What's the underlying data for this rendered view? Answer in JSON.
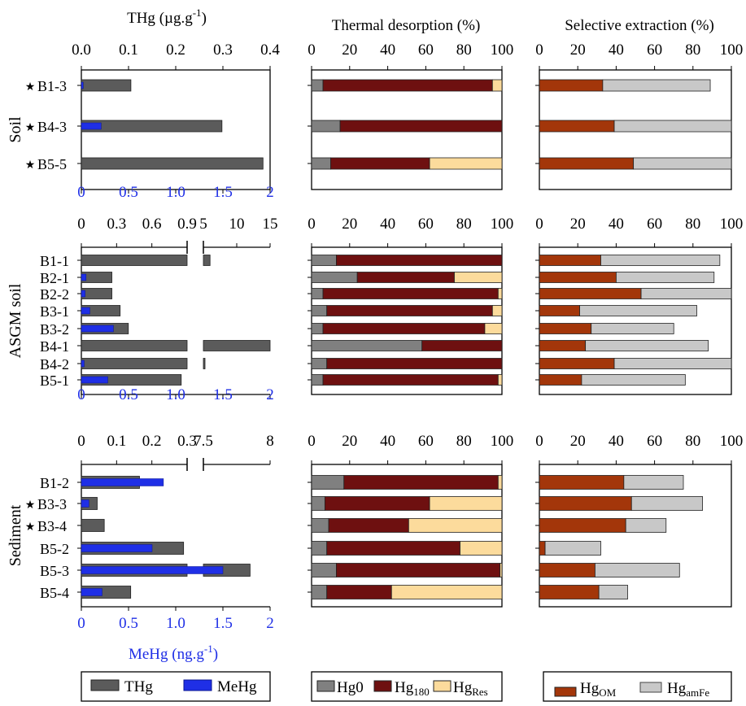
{
  "colors": {
    "thg": "#5b5b5b",
    "mehg": "#1f2fe6",
    "hg0": "#808080",
    "hg180": "#6e1010",
    "hgres": "#fcdb9c",
    "hgom": "#a3360a",
    "hgamfe": "#c8c8c8",
    "bottom_axis": "#1f2fe6"
  },
  "headers": {
    "thg": "THg",
    "thg_unit": "(µg.g",
    "thg_unit_sup": "-1",
    "thg_unit_close": ")",
    "thermal": "Thermal desorption (%)",
    "selective": "Selective extraction (%)"
  },
  "mehg_axis_label": {
    "text": "MeHg",
    "unit": "(ng.g",
    "sup": "-1",
    "close": ")"
  },
  "star_glyph": "★",
  "groups": [
    {
      "label": "Soil",
      "top_ticks": [
        "0.0",
        "0.1",
        "0.2",
        "0.3",
        "0.4"
      ],
      "bottom_ticks": [
        "0",
        "0.5",
        "1.0",
        "1.5",
        "2"
      ]
    },
    {
      "label": "ASGM soil",
      "top_ticks_left": [
        "0",
        "0.3",
        "0.6",
        "0.9"
      ],
      "top_ticks_right": [
        "5",
        "10",
        "15"
      ],
      "bottom_ticks": [
        "0",
        "0.5",
        "1.0",
        "1.5",
        "2"
      ]
    },
    {
      "label": "Sediment",
      "top_ticks_left": [
        "0",
        "0.1",
        "0.2",
        "0.3"
      ],
      "top_ticks_right": [
        "7.5",
        "8"
      ],
      "bottom_ticks": [
        "0",
        "0.5",
        "1.0",
        "1.5",
        "2"
      ]
    }
  ],
  "percent_ticks": [
    "0",
    "20",
    "40",
    "60",
    "80",
    "100"
  ],
  "legends": {
    "thg": "THg",
    "mehg": "MeHg",
    "hg0": "Hg0",
    "hg180": "Hg",
    "hg180_sub": "180",
    "hgres": "Hg",
    "hgres_sub": "Res",
    "hgom": "Hg",
    "hgom_sub": "OM",
    "hgamfe": "Hg",
    "hgamfe_sub": "amFe"
  },
  "chart_data": [
    {
      "type": "bar",
      "title": "THg (µg.g-1)",
      "xlabel": "MeHg (ng.g-1)",
      "groups": [
        {
          "name": "Soil",
          "samples": [
            {
              "label": "B1-3",
              "star": true,
              "thg": 0.105,
              "mehg": 0.02
            },
            {
              "label": "B4-3",
              "star": true,
              "thg": 0.298,
              "mehg": 0.21
            },
            {
              "label": "B5-5",
              "star": true,
              "thg": 0.385,
              "mehg": null
            }
          ]
        },
        {
          "name": "ASGM soil",
          "samples": [
            {
              "label": "B1-1",
              "thg": 6.0,
              "mehg": null
            },
            {
              "label": "B2-1",
              "thg": 0.26,
              "mehg": 0.05
            },
            {
              "label": "B2-2",
              "thg": 0.26,
              "mehg": 0.04
            },
            {
              "label": "B3-1",
              "thg": 0.33,
              "mehg": 0.09
            },
            {
              "label": "B3-2",
              "thg": 0.4,
              "mehg": 0.34
            },
            {
              "label": "B4-1",
              "thg": 15.0,
              "mehg": null
            },
            {
              "label": "B4-2",
              "thg": 0.97,
              "mehg": 0.03
            },
            {
              "label": "B5-1",
              "thg": 0.85,
              "mehg": 0.28
            }
          ]
        },
        {
          "name": "Sediment",
          "samples": [
            {
              "label": "B1-2",
              "thg": 0.165,
              "mehg": 0.87
            },
            {
              "label": "B3-3",
              "star": true,
              "thg": 0.045,
              "mehg": 0.08
            },
            {
              "label": "B3-4",
              "star": true,
              "thg": 0.065,
              "mehg": null
            },
            {
              "label": "B5-2",
              "thg": 0.29,
              "mehg": 0.75
            },
            {
              "label": "B5-3",
              "thg": 7.85,
              "mehg": 1.5
            },
            {
              "label": "B5-4",
              "thg": 0.14,
              "mehg": 0.22
            }
          ]
        }
      ],
      "legend": [
        "THg",
        "MeHg"
      ]
    },
    {
      "type": "bar",
      "stacked": true,
      "title": "Thermal desorption (%)",
      "series_names": [
        "Hg0",
        "Hg180",
        "HgRes"
      ],
      "xlim": [
        0,
        100
      ],
      "groups": [
        {
          "name": "Soil",
          "rows": [
            [
              6,
              89,
              5
            ],
            [
              15,
              85,
              0
            ],
            [
              10,
              52,
              38
            ]
          ]
        },
        {
          "name": "ASGM soil",
          "rows": [
            [
              13,
              87,
              0
            ],
            [
              24,
              51,
              25
            ],
            [
              6,
              92,
              2
            ],
            [
              8,
              87,
              5
            ],
            [
              6,
              85,
              9
            ],
            [
              58,
              42,
              0
            ],
            [
              8,
              92,
              0
            ],
            [
              6,
              92,
              2
            ]
          ]
        },
        {
          "name": "Sediment",
          "rows": [
            [
              17,
              81,
              2
            ],
            [
              7,
              55,
              38
            ],
            [
              9,
              42,
              49
            ],
            [
              8,
              70,
              22
            ],
            [
              13,
              86,
              1
            ],
            [
              8,
              34,
              58
            ]
          ]
        }
      ]
    },
    {
      "type": "bar",
      "stacked": true,
      "title": "Selective extraction (%)",
      "series_names": [
        "HgOM",
        "HgamFe"
      ],
      "xlim": [
        0,
        100
      ],
      "groups": [
        {
          "name": "Soil",
          "rows": [
            [
              33,
              56
            ],
            [
              39,
              61
            ],
            [
              49,
              51
            ]
          ]
        },
        {
          "name": "ASGM soil",
          "rows": [
            [
              32,
              62
            ],
            [
              40,
              51
            ],
            [
              53,
              47
            ],
            [
              21,
              61
            ],
            [
              27,
              43
            ],
            [
              24,
              64
            ],
            [
              39,
              61
            ],
            [
              22,
              54
            ]
          ]
        },
        {
          "name": "Sediment",
          "rows": [
            [
              44,
              31
            ],
            [
              48,
              37
            ],
            [
              45,
              21
            ],
            [
              3,
              29
            ],
            [
              29,
              44
            ],
            [
              31,
              15
            ]
          ]
        }
      ]
    }
  ]
}
